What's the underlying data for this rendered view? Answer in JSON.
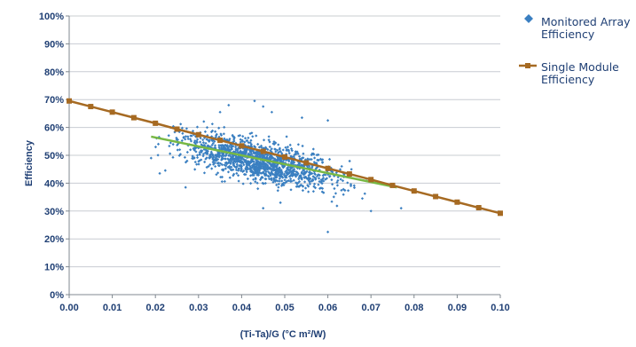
{
  "chart_data": {
    "type": "scatter",
    "title": "",
    "xlabel": "(Ti-Ta)/G (°C m²/W)",
    "ylabel": "Efficiency",
    "xlim": [
      0,
      0.1
    ],
    "ylim": [
      0,
      1
    ],
    "x_ticks": [
      "0.00",
      "0.01",
      "0.02",
      "0.03",
      "0.04",
      "0.05",
      "0.06",
      "0.07",
      "0.08",
      "0.09",
      "0.10"
    ],
    "y_ticks": [
      "0%",
      "10%",
      "20%",
      "30%",
      "40%",
      "50%",
      "60%",
      "70%",
      "80%",
      "90%",
      "100%"
    ],
    "grid": "horizontal",
    "legend_position": "right",
    "series": [
      {
        "name": "Monitored Array Efficiency",
        "style": "scatter",
        "marker": "diamond",
        "color": "#3a7fc1",
        "cloud": {
          "x_center": 0.044,
          "x_spread": 0.009,
          "x_min": 0.018,
          "x_max": 0.079,
          "y_at_x0": 0.62,
          "slope": -3.2,
          "y_spread": 0.035,
          "count": 1400
        },
        "points": [
          {
            "x": 0.043,
            "y": 0.695
          },
          {
            "x": 0.037,
            "y": 0.68
          },
          {
            "x": 0.035,
            "y": 0.655
          },
          {
            "x": 0.045,
            "y": 0.675
          },
          {
            "x": 0.047,
            "y": 0.655
          },
          {
            "x": 0.054,
            "y": 0.635
          },
          {
            "x": 0.06,
            "y": 0.625
          },
          {
            "x": 0.06,
            "y": 0.225
          },
          {
            "x": 0.032,
            "y": 0.6
          },
          {
            "x": 0.019,
            "y": 0.49
          },
          {
            "x": 0.021,
            "y": 0.435
          },
          {
            "x": 0.027,
            "y": 0.385
          },
          {
            "x": 0.077,
            "y": 0.31
          },
          {
            "x": 0.07,
            "y": 0.3
          },
          {
            "x": 0.068,
            "y": 0.345
          },
          {
            "x": 0.049,
            "y": 0.33
          },
          {
            "x": 0.045,
            "y": 0.31
          }
        ]
      },
      {
        "name": "Single Module Efficiency",
        "style": "line-markers",
        "marker": "square",
        "color": "#a66a22",
        "x": [
          0,
          0.005,
          0.01,
          0.015,
          0.02,
          0.025,
          0.03,
          0.035,
          0.04,
          0.045,
          0.05,
          0.055,
          0.06,
          0.065,
          0.07,
          0.075,
          0.08,
          0.085,
          0.09,
          0.095,
          0.1
        ],
        "y": [
          0.695,
          0.675,
          0.655,
          0.635,
          0.615,
          0.594,
          0.574,
          0.554,
          0.534,
          0.514,
          0.494,
          0.473,
          0.453,
          0.433,
          0.413,
          0.392,
          0.372,
          0.352,
          0.332,
          0.312,
          0.292
        ]
      },
      {
        "style": "trendline",
        "color": "#77b844",
        "x": [
          0.019,
          0.076
        ],
        "y": [
          0.567,
          0.385
        ]
      }
    ]
  },
  "legend": {
    "items": [
      {
        "line1": "Monitored Array",
        "line2": "Efficiency"
      },
      {
        "line1": "Single Module",
        "line2": "Efficiency"
      }
    ]
  }
}
